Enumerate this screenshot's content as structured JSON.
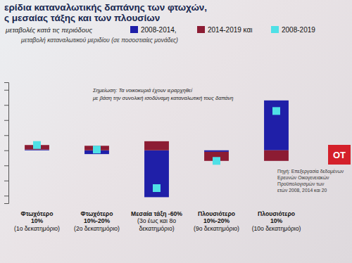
{
  "chart_data": {
    "type": "bar",
    "title": "ερίδια καταναλωτικής δαπάνης των φτωχών,\nς μεσαίας τάξης και των πλουσίων",
    "subtitle": "μεταβολές κατά τις περιόδους",
    "y_label": "μεταβολή καταναλωτικού μεριδίου (σε ποσοστιαίες μονάδες)",
    "note": "Σημείωση: Τα νοικοκυριά έχουν ιεραρχηθεί\nμε βάση την συνολική ισοδύναμη καταναλωτική τους δαπάνη",
    "source": "Πηγή: Επεξεργασία δεδομένων\nΕρευνών Οικογενειακών\nΠροϋπολογισμών των\nετών 2008, 2014 και 20",
    "logo": "ΟΤ",
    "categories": [
      "Φτωχότερο\n10%\n(1ο δεκατημόριο)",
      "Φτωχότερο\n10%-20%\n(2ο δεκατημόριο)",
      "Μεσαία τάξη -60%\n(3ο έως και 8ο\nδεκατημόριο)",
      "Πλουσιότερο\n10%-20%\n(9ο δεκατημόριο)",
      "Πλουσιότερο\n10%\n(10ο δεκατημόριο)"
    ],
    "series": [
      {
        "name": "2008-2014,",
        "color": "#1f1fa8",
        "values": [
          0.05,
          -0.25,
          -3.1,
          -0.1,
          3.3
        ]
      },
      {
        "name": "2014-2019 και",
        "color": "#8c1c33",
        "values": [
          0.3,
          0.3,
          0.6,
          -0.6,
          -0.7
        ]
      },
      {
        "name": "2008-2019",
        "color": "#4fe0e6",
        "type": "scatter",
        "marker": "square",
        "values": [
          0.35,
          0.05,
          -2.5,
          -0.7,
          2.6
        ]
      }
    ],
    "stacked": true,
    "legend": "top",
    "tick_labels": "x",
    "ylim": [
      -3.5,
      4.5
    ],
    "yticks": [
      -3,
      -2,
      -1,
      0,
      1,
      2,
      3,
      4
    ]
  }
}
